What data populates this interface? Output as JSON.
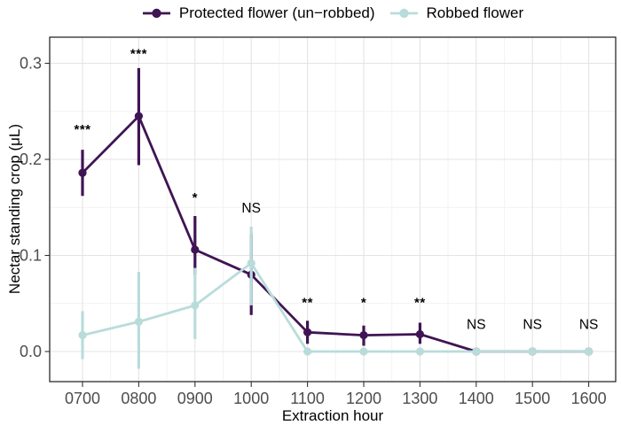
{
  "legend": {
    "items": [
      {
        "label": "Protected flower (un−robbed)",
        "color": "#3f1454"
      },
      {
        "label": "Robbed flower",
        "color": "#b9dcdb"
      }
    ]
  },
  "chart_data": {
    "type": "line",
    "title": "",
    "xlabel": "Extraction hour",
    "ylabel": "Nectar standing crop (μL)",
    "categories": [
      "0700",
      "0800",
      "0900",
      "1000",
      "1100",
      "1200",
      "1300",
      "1400",
      "1500",
      "1600"
    ],
    "yticks": [
      "0.0",
      "0.1",
      "0.2",
      "0.3"
    ],
    "ylim": [
      -0.032,
      0.328
    ],
    "grid": true,
    "legend_position": "top",
    "series": [
      {
        "name": "Protected flower (un−robbed)",
        "color": "#3f1454",
        "values": [
          0.186,
          0.245,
          0.106,
          0.08,
          0.02,
          0.017,
          0.018,
          0.0,
          0.0,
          0.0
        ],
        "ci_low": [
          0.162,
          0.194,
          0.08,
          0.038,
          0.008,
          0.006,
          0.008,
          0.0,
          0.0,
          0.0
        ],
        "ci_high": [
          0.21,
          0.295,
          0.141,
          0.122,
          0.032,
          0.027,
          0.03,
          0.0,
          0.0,
          0.0
        ]
      },
      {
        "name": "Robbed flower",
        "color": "#b9dcdb",
        "values": [
          0.017,
          0.031,
          0.048,
          0.092,
          0.0,
          0.0,
          0.0,
          0.0,
          0.0,
          0.0
        ],
        "ci_low": [
          -0.008,
          -0.018,
          0.013,
          0.048,
          0.0,
          0.0,
          0.0,
          0.0,
          0.0,
          0.0
        ],
        "ci_high": [
          0.042,
          0.083,
          0.087,
          0.13,
          0.0,
          0.0,
          0.0,
          0.0,
          0.0,
          0.0
        ]
      }
    ],
    "significance": [
      {
        "x": "0700",
        "label": "***",
        "y": 0.235
      },
      {
        "x": "0800",
        "label": "***",
        "y": 0.314
      },
      {
        "x": "0900",
        "label": "*",
        "y": 0.164
      },
      {
        "x": "1000",
        "label": "NS",
        "y": 0.152
      },
      {
        "x": "1100",
        "label": "**",
        "y": 0.055
      },
      {
        "x": "1200",
        "label": "*",
        "y": 0.055
      },
      {
        "x": "1300",
        "label": "**",
        "y": 0.055
      },
      {
        "x": "1400",
        "label": "NS",
        "y": 0.031
      },
      {
        "x": "1500",
        "label": "NS",
        "y": 0.031
      },
      {
        "x": "1600",
        "label": "NS",
        "y": 0.031
      }
    ]
  }
}
